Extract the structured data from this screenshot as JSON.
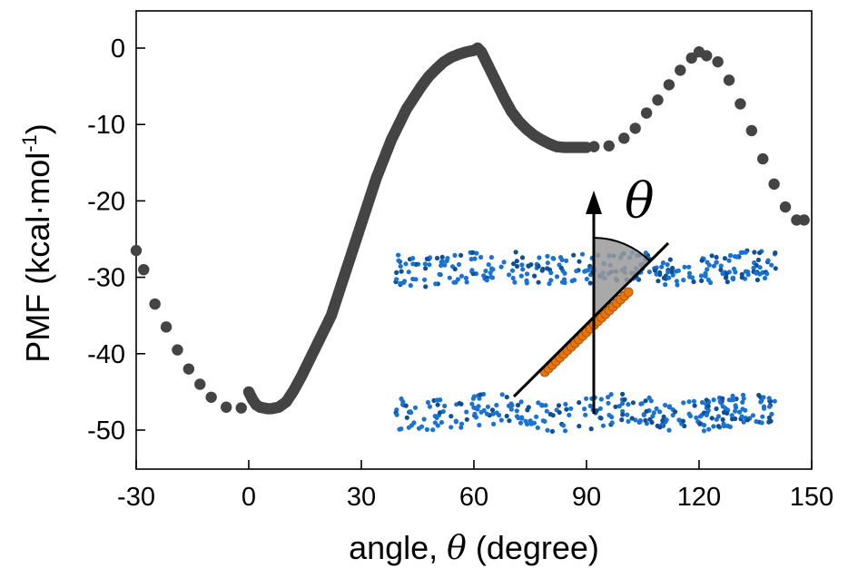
{
  "chart_data": {
    "type": "scatter",
    "title": "",
    "xlabel_prefix": "angle, ",
    "xlabel_symbol": "θ",
    "xlabel_suffix": " (degree)",
    "ylabel_main": "PMF (kcal·mol",
    "ylabel_sup": "-1",
    "ylabel_close": ")",
    "xlim": [
      -30,
      150
    ],
    "ylim": [
      -55,
      5
    ],
    "xticks": [
      "-30",
      "0",
      "30",
      "60",
      "90",
      "120",
      "150"
    ],
    "yticks": [
      "0",
      "-10",
      "-20",
      "-30",
      "-40",
      "-50"
    ],
    "grid": false,
    "legend": "none",
    "marker_color": "#444444",
    "series": [
      {
        "style": "dense",
        "x": [
          0,
          1,
          2,
          3,
          4,
          5,
          6,
          8,
          10,
          12,
          14,
          16,
          18,
          20,
          22,
          24,
          26,
          28,
          30,
          32,
          34,
          36,
          38,
          40,
          42,
          44,
          46,
          48,
          50,
          52,
          54,
          56,
          58,
          60,
          61,
          62,
          63,
          64,
          66,
          68,
          70,
          72,
          74,
          76,
          78,
          80,
          82,
          84,
          86,
          88,
          90
        ],
        "y": [
          -45,
          -46,
          -46.7,
          -47,
          -47.1,
          -47.2,
          -47.2,
          -47,
          -46.3,
          -44.8,
          -43,
          -41,
          -39,
          -37,
          -35,
          -32,
          -29,
          -26,
          -23,
          -20,
          -17,
          -14.5,
          -12,
          -10,
          -8,
          -6.5,
          -5,
          -3.7,
          -2.7,
          -1.8,
          -1.2,
          -0.8,
          -0.5,
          -0.3,
          0,
          -0.5,
          -1.5,
          -2.5,
          -4.5,
          -6.5,
          -8.3,
          -9.6,
          -10.6,
          -11.4,
          -12,
          -12.5,
          -12.9,
          -13,
          -13,
          -13,
          -13
        ]
      },
      {
        "style": "sparse",
        "x": [
          -30,
          -28,
          -25,
          -22,
          -19,
          -16,
          -13,
          -10,
          -6,
          -2,
          92,
          96,
          100,
          103,
          106,
          109,
          112,
          115,
          118,
          120,
          122,
          125,
          128,
          131,
          134,
          137,
          140,
          143,
          146,
          148
        ],
        "y": [
          -26.5,
          -29,
          -33.5,
          -36.5,
          -39.5,
          -42,
          -44,
          -45.7,
          -47,
          -47.1,
          -12.9,
          -12.8,
          -11.8,
          -10.5,
          -8.5,
          -6.8,
          -4.8,
          -2.9,
          -1.3,
          -0.5,
          -1,
          -1.8,
          -4.2,
          -7.3,
          -10.8,
          -14.5,
          -17.8,
          -20.8,
          -22.5,
          -22.5
        ]
      }
    ]
  },
  "inset": {
    "label": "θ",
    "bilayer_color": "#1a73d1",
    "rod_color": "#e8750a",
    "shade_color": "#9a9a9a"
  }
}
